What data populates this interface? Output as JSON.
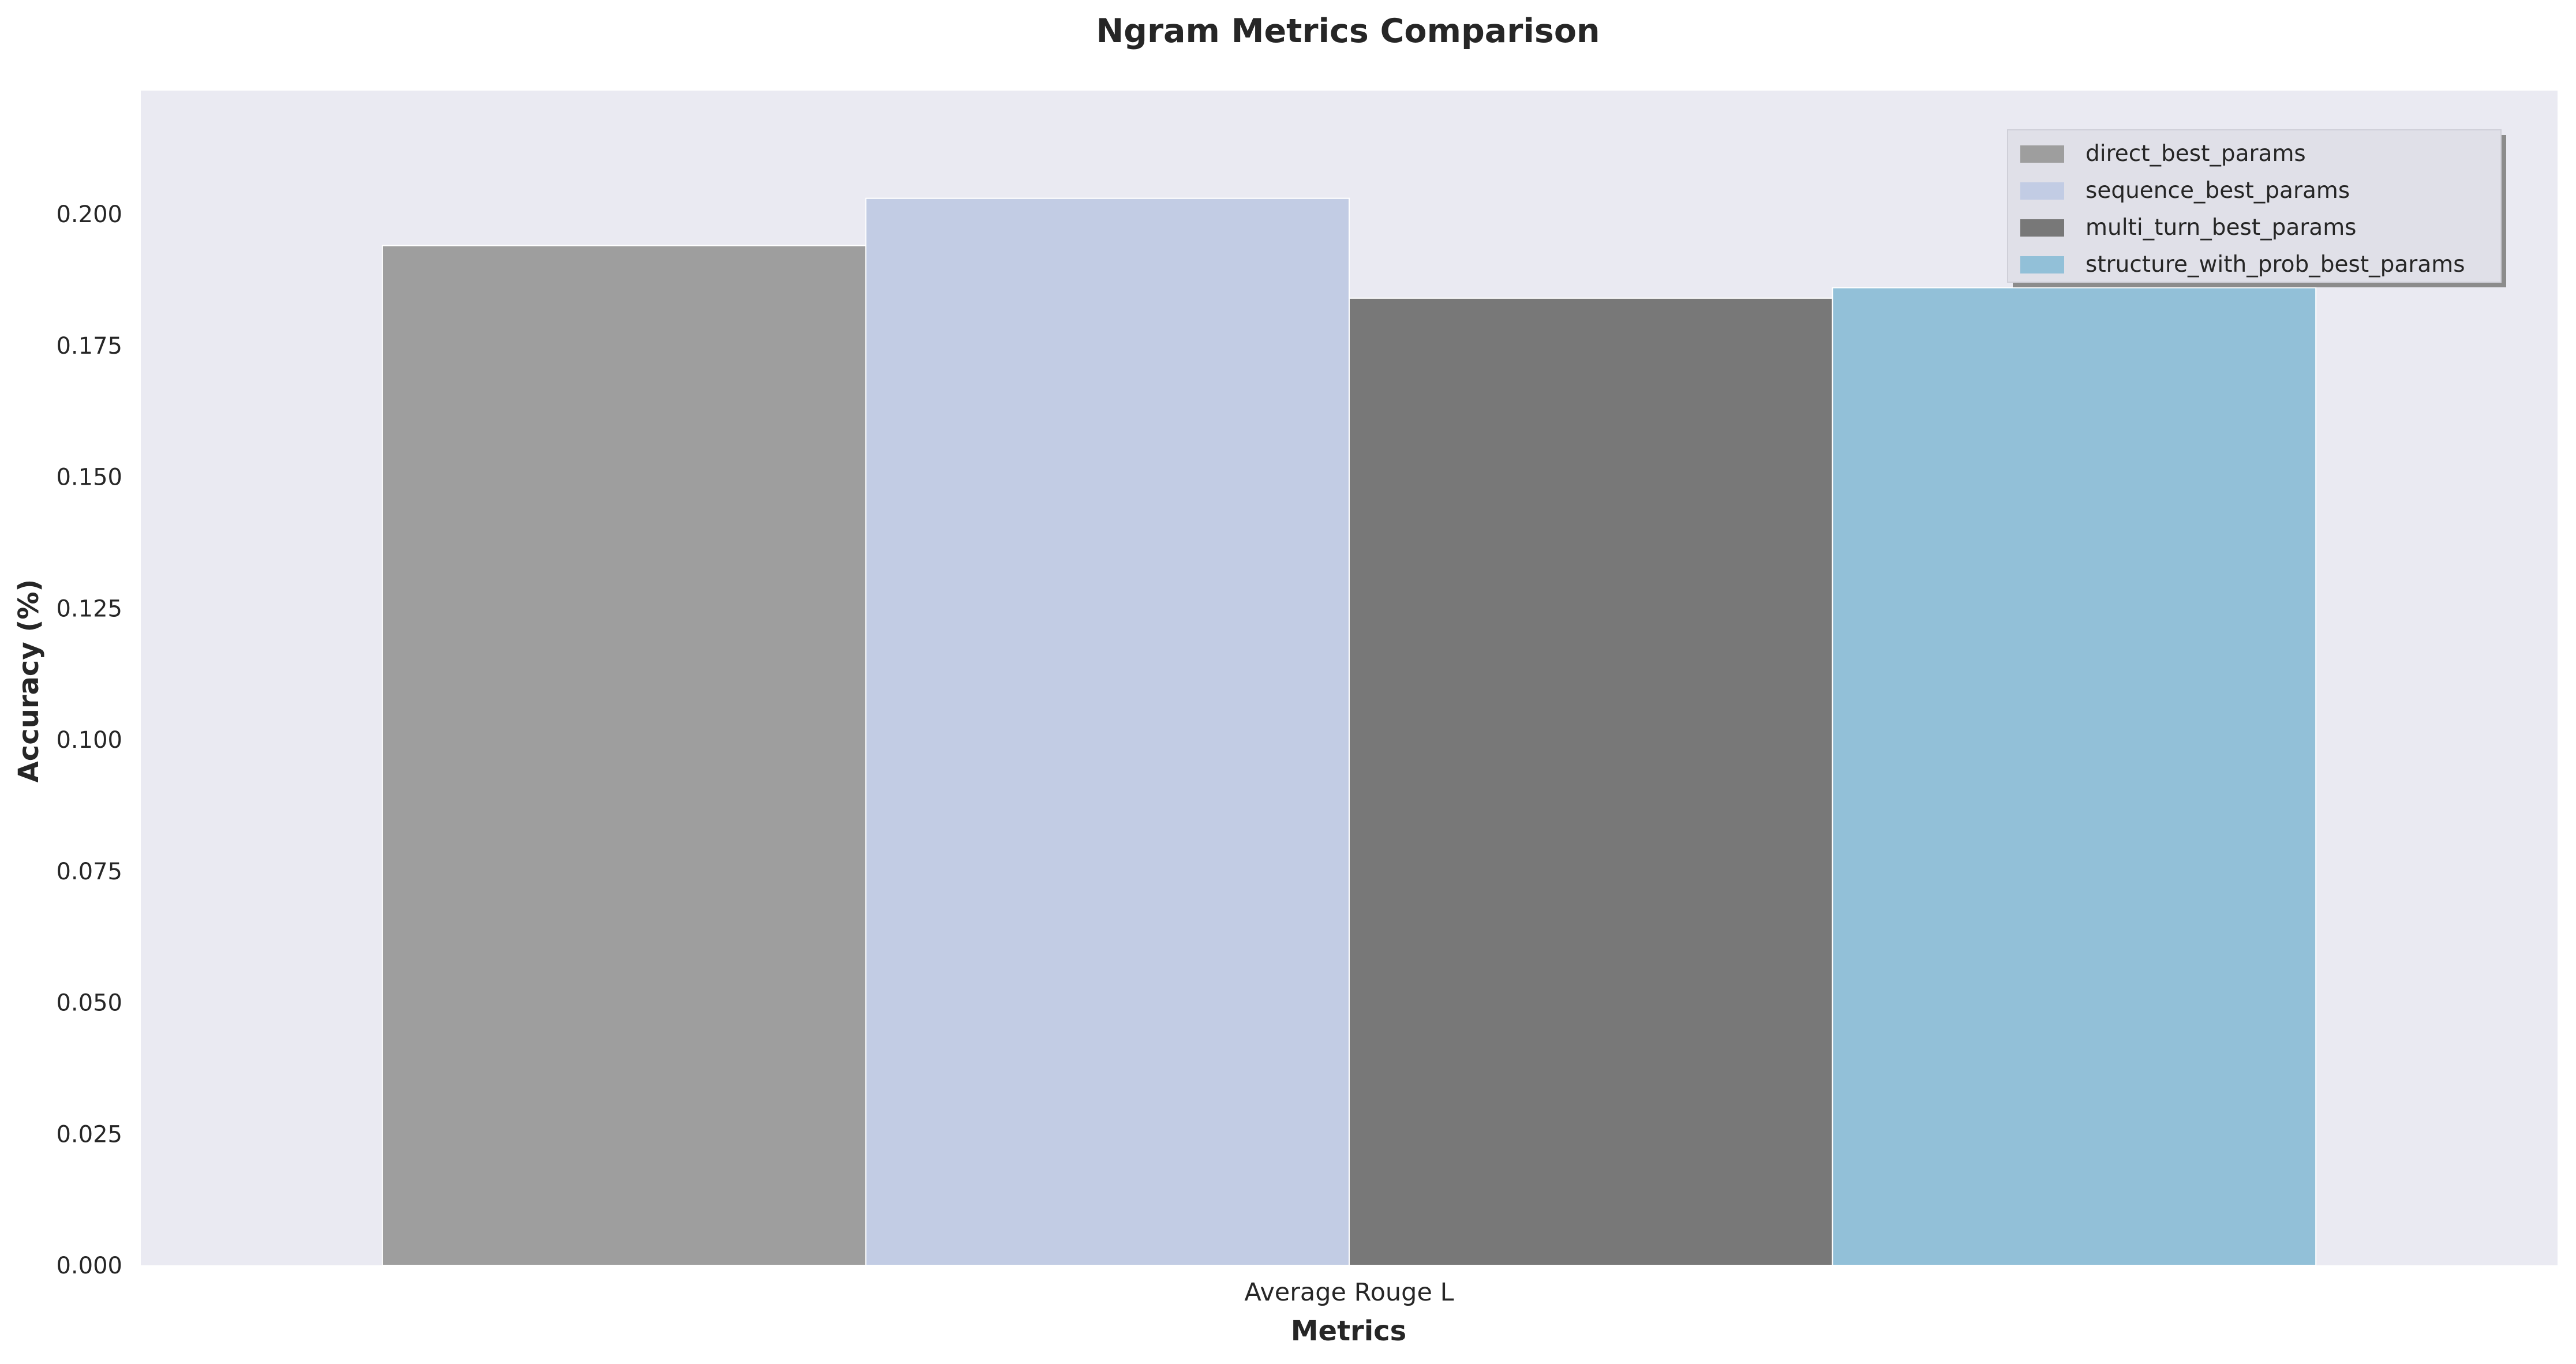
{
  "chart_data": {
    "type": "bar",
    "title": "Ngram Metrics Comparison",
    "xlabel": "Metrics",
    "ylabel": "Accuracy (%)",
    "categories": [
      "Average Rouge L"
    ],
    "series": [
      {
        "name": "direct_best_params",
        "values": [
          0.194
        ],
        "color": "#9e9e9e"
      },
      {
        "name": "sequence_best_params",
        "values": [
          0.203
        ],
        "color": "#c2cce4"
      },
      {
        "name": "multi_turn_best_params",
        "values": [
          0.184
        ],
        "color": "#787878"
      },
      {
        "name": "structure_with_prob_best_params",
        "values": [
          0.186
        ],
        "color": "#92c0d8"
      }
    ],
    "ylim": [
      0,
      0.2235
    ],
    "yticks": [
      "0.000",
      "0.025",
      "0.050",
      "0.075",
      "0.100",
      "0.125",
      "0.150",
      "0.175",
      "0.200"
    ],
    "grid": false,
    "legend_position": "top-right",
    "background_color": "#eaeaf2"
  }
}
